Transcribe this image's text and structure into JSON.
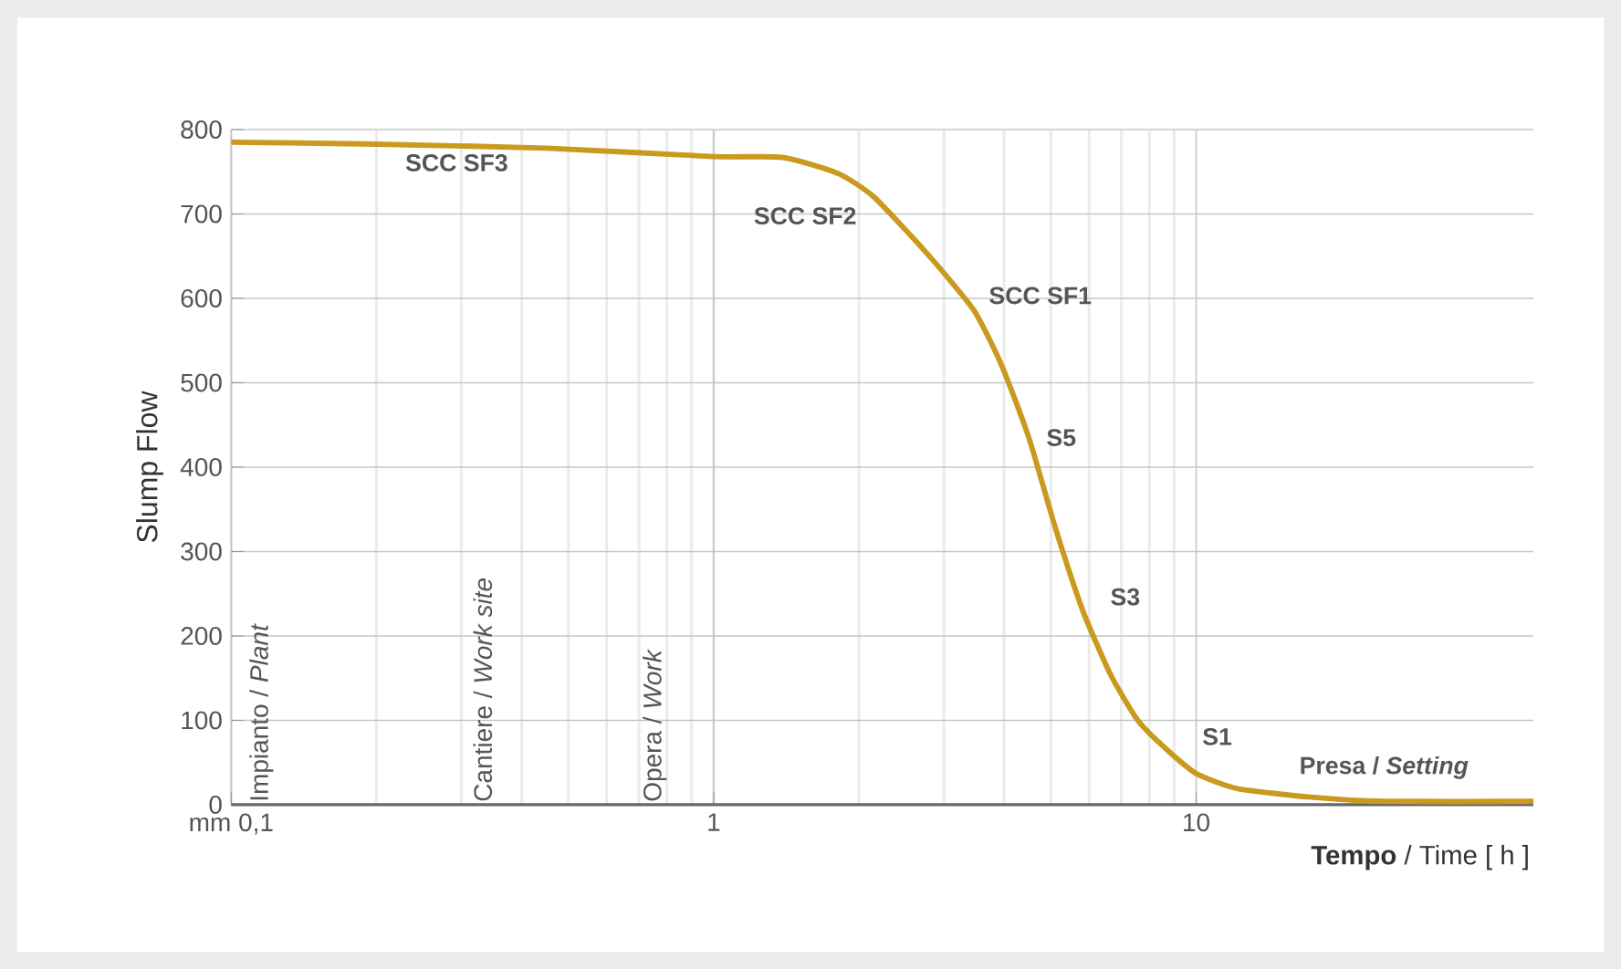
{
  "chart_data": {
    "type": "line",
    "xlabel": "**Tempo** / Time  [ h ]",
    "ylabel": "Slump Flow",
    "log": "x",
    "grid": true,
    "color": "#c99a1e",
    "x": [
      0.1,
      0.188,
      0.45,
      1,
      1.39,
      1.81,
      2.15,
      2.79,
      3.46,
      3.95,
      4.5,
      5.12,
      5.83,
      6.65,
      7.57,
      8.63,
      10,
      12.2,
      17.3,
      24.5,
      50
    ],
    "values": [
      785,
      783,
      778,
      768,
      767,
      748,
      720,
      651,
      586,
      521,
      435,
      326,
      229,
      154,
      100,
      67,
      37,
      19,
      9,
      4,
      4
    ],
    "xlim": [
      0.1,
      50
    ],
    "ylim": [
      0,
      800
    ],
    "xticks": [
      {
        "value": 0.1,
        "label": "mm 0,1"
      },
      1,
      10
    ],
    "yticks": [
      0,
      100,
      200,
      300,
      400,
      500,
      600,
      700,
      800
    ],
    "annotations": [
      {
        "text": "SCC SF3",
        "x": 0.188,
        "y": 783
      },
      {
        "text": "SCC SF2",
        "x": 2.15,
        "y": 720
      },
      {
        "text": "SCC SF1",
        "x": 3.46,
        "y": 586
      },
      {
        "text": "S5",
        "x": 4.5,
        "y": 435
      },
      {
        "text": "S3",
        "x": 5.83,
        "y": 229
      },
      {
        "text": "S1",
        "x": 8.63,
        "y": 67
      },
      {
        "text": "Presa / *Setting*",
        "x": 24.5,
        "y": 4
      },
      "Impianto / *Plant*",
      "Cantiere / *Work site*",
      "Opera / *Work*"
    ]
  }
}
